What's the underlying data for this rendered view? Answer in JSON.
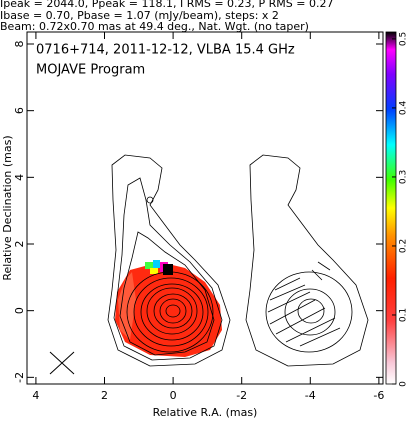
{
  "chart_data": {
    "type": "contour",
    "annotations": [
      "Ipeak = 2044.0, Ppeak = 118.1, I RMS = 0.23, P RMS = 0.27",
      "Ibase = 0.70, Pbase = 1.07 (mJy/beam), steps: x 2",
      "Beam: 0.72x0.70 mas at 49.4 deg., Nat. Wgt. (no taper)"
    ],
    "title": "0716+714, 2011-12-12, VLBA 15.4 GHz",
    "subtitle": "MOJAVE Program",
    "xlabel": "Relative R.A. (mas)",
    "ylabel": "Relative Declination (mas)",
    "xlim": [
      4.26,
      -6.12
    ],
    "xticks": [
      4,
      2,
      0,
      -2,
      -4,
      -6
    ],
    "ylim": [
      -2.2,
      8.36
    ],
    "yticks": [
      -2,
      0,
      2,
      4,
      6,
      8
    ],
    "colorbar": {
      "lim": [
        0,
        0.51
      ],
      "ticks": [
        0,
        0.1,
        0.2,
        0.3,
        0.4,
        0.5
      ]
    }
  }
}
